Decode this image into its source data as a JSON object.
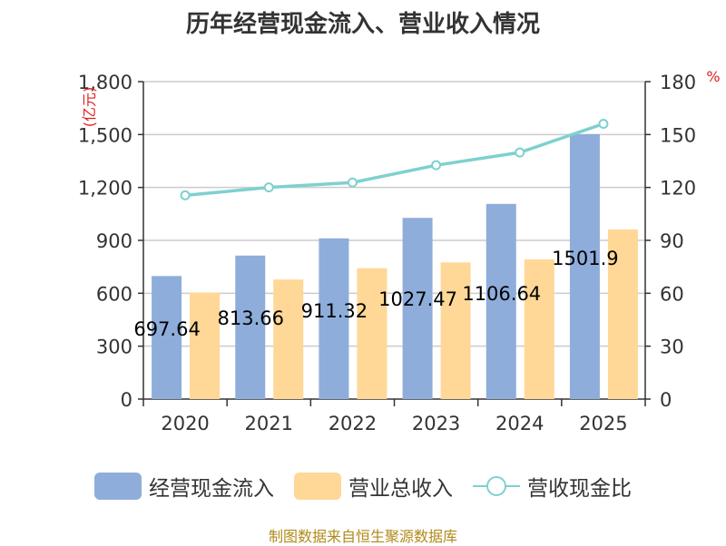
{
  "title": "历年经营现金流入、营业收入情况",
  "left_unit": "(亿元)",
  "right_unit": "%",
  "legend": {
    "series1": "经营现金流入",
    "series2": "营业总收入",
    "series3": "营收现金比"
  },
  "source": "制图数据来自恒生聚源数据库",
  "colors": {
    "cash_inflow": "#8eaddb",
    "revenue": "#ffd796",
    "ratio": "#7fd0d0",
    "grid": "#cccccc",
    "axis": "#333333"
  },
  "chart_data": {
    "type": "bar",
    "categories": [
      "2020",
      "2021",
      "2022",
      "2023",
      "2024",
      "2025"
    ],
    "series": [
      {
        "name": "经营现金流入",
        "type": "bar",
        "axis": "left",
        "values": [
          697.64,
          813.66,
          911.32,
          1027.47,
          1106.64,
          1501.9
        ],
        "labels": [
          "697.64",
          "813.66",
          "911.32",
          "1027.47",
          "1106.64",
          "1501.9"
        ]
      },
      {
        "name": "营业总收入",
        "type": "bar",
        "axis": "left",
        "values": [
          604,
          678,
          742,
          775,
          792,
          962
        ]
      },
      {
        "name": "营收现金比",
        "type": "line",
        "axis": "right",
        "values": [
          115.5,
          120.0,
          122.8,
          132.6,
          139.8,
          156.1
        ]
      }
    ],
    "left_axis": {
      "label": "(亿元)",
      "min": 0,
      "max": 1800,
      "ticks": [
        0,
        300,
        600,
        900,
        1200,
        1500,
        1800
      ],
      "tick_labels": [
        "0",
        "300",
        "600",
        "900",
        "1,200",
        "1,500",
        "1,800"
      ]
    },
    "right_axis": {
      "label": "%",
      "min": 0,
      "max": 180,
      "ticks": [
        0,
        30,
        60,
        90,
        120,
        150,
        180
      ],
      "tick_labels": [
        "0",
        "30",
        "60",
        "90",
        "120",
        "150",
        "180"
      ]
    },
    "grid": true,
    "legend_position": "bottom"
  }
}
